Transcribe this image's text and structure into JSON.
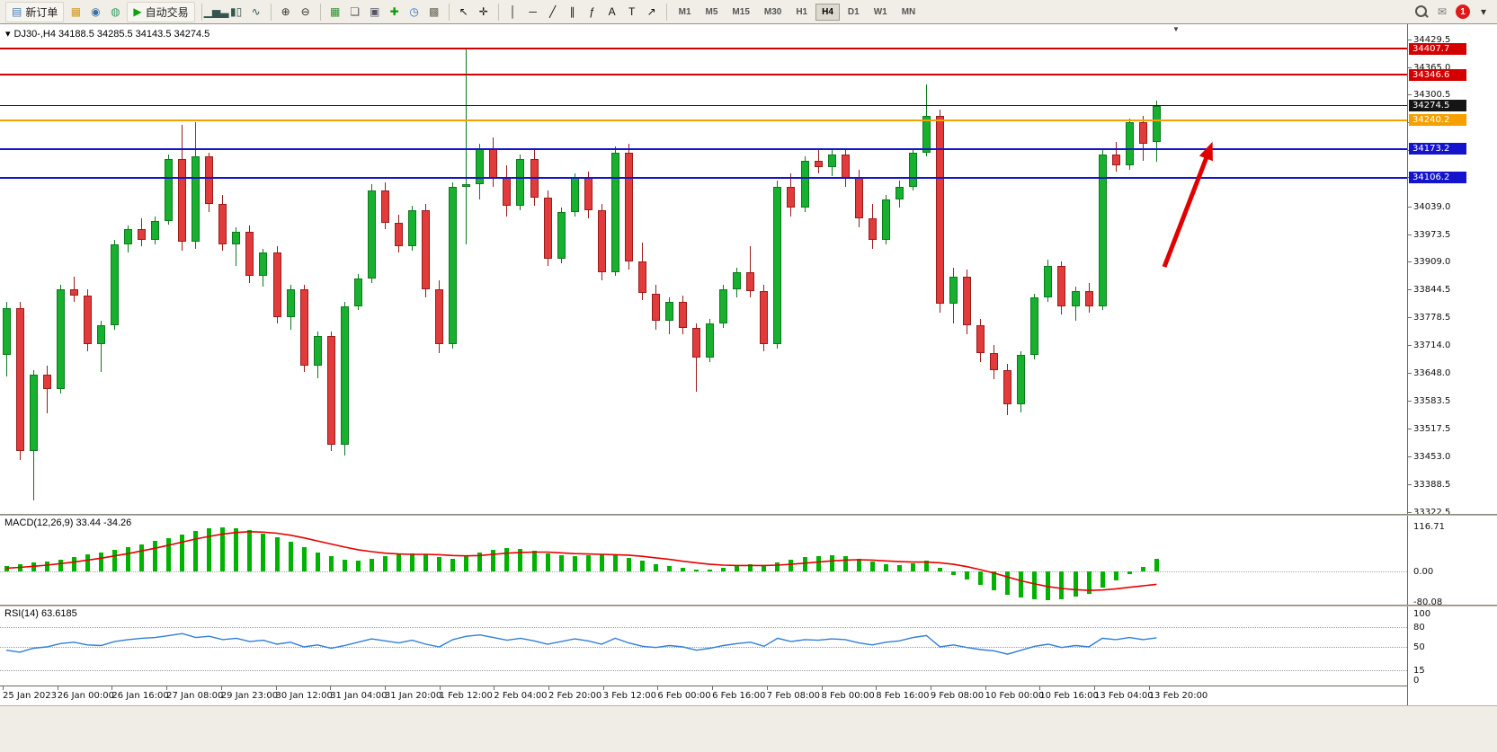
{
  "toolbar": {
    "items": [
      {
        "type": "button",
        "name": "new-order-button",
        "label": "新订单",
        "icon": {
          "name": "new-order-icon",
          "glyph": "▤",
          "color": "#4a7ab5"
        }
      },
      {
        "type": "icon",
        "name": "market-watch-icon",
        "glyph": "▦",
        "color": "#cf9a1d"
      },
      {
        "type": "icon",
        "name": "profile-icon",
        "glyph": "◉",
        "color": "#3a6ea5"
      },
      {
        "type": "icon",
        "name": "community-icon",
        "glyph": "◍",
        "color": "#2f9e63"
      },
      {
        "type": "button",
        "name": "auto-trading-button",
        "label": "自动交易",
        "icon": {
          "name": "autotrade-play-icon",
          "glyph": "▶",
          "color": "#0f9f0f"
        }
      },
      {
        "type": "sep"
      },
      {
        "type": "icon",
        "name": "bar-chart-icon",
        "glyph": "▁▅▃",
        "color": "#33544f"
      },
      {
        "type": "icon",
        "name": "candlestick-chart-icon",
        "glyph": "▮▯",
        "color": "#33544f"
      },
      {
        "type": "icon",
        "name": "line-chart-icon",
        "glyph": "∿",
        "color": "#33544f"
      },
      {
        "type": "sep"
      },
      {
        "type": "icon",
        "name": "zoom-in-icon",
        "glyph": "⊕",
        "color": "#333333"
      },
      {
        "type": "icon",
        "name": "zoom-out-icon",
        "glyph": "⊖",
        "color": "#333333"
      },
      {
        "type": "sep"
      },
      {
        "type": "icon",
        "name": "tile-windows-icon",
        "glyph": "▦",
        "color": "#2f8f2f"
      },
      {
        "type": "icon",
        "name": "cascade-windows-icon",
        "glyph": "❏",
        "color": "#555566"
      },
      {
        "type": "icon",
        "name": "arrange-windows-icon",
        "glyph": "▣",
        "color": "#555566"
      },
      {
        "type": "icon",
        "name": "add-indicator-icon",
        "glyph": "✚",
        "color": "#0a9a0a"
      },
      {
        "type": "icon",
        "name": "period-cycle-icon",
        "glyph": "◷",
        "color": "#2a6fbf"
      },
      {
        "type": "icon",
        "name": "template-icon",
        "glyph": "▩",
        "color": "#6b675b"
      },
      {
        "type": "sep"
      },
      {
        "type": "icon",
        "name": "cursor-icon",
        "glyph": "↖",
        "color": "#111111"
      },
      {
        "type": "icon",
        "name": "crosshair-icon",
        "glyph": "✛",
        "color": "#111111"
      },
      {
        "type": "sep"
      },
      {
        "type": "icon",
        "name": "vertical-line-icon",
        "glyph": "│",
        "color": "#111111"
      },
      {
        "type": "icon",
        "name": "horizontal-line-icon",
        "glyph": "─",
        "color": "#111111"
      },
      {
        "type": "icon",
        "name": "trendline-icon",
        "glyph": "╱",
        "color": "#111111"
      },
      {
        "type": "icon",
        "name": "channel-icon",
        "glyph": "∥",
        "color": "#111111"
      },
      {
        "type": "icon",
        "name": "fibonacci-icon",
        "glyph": "ƒ",
        "color": "#111111"
      },
      {
        "type": "icon",
        "name": "text-icon",
        "glyph": "A",
        "color": "#111111"
      },
      {
        "type": "icon",
        "name": "label-icon",
        "glyph": "T",
        "color": "#111111"
      },
      {
        "type": "icon",
        "name": "shapes-icon",
        "glyph": "↗",
        "color": "#111111"
      },
      {
        "type": "sep"
      }
    ],
    "timeframes": [
      {
        "label": "M1"
      },
      {
        "label": "M5"
      },
      {
        "label": "M15"
      },
      {
        "label": "M30"
      },
      {
        "label": "H1"
      },
      {
        "label": "H4",
        "active": true
      },
      {
        "label": "D1"
      },
      {
        "label": "W1"
      },
      {
        "label": "MN"
      }
    ],
    "right_items": [
      {
        "type": "magnifier",
        "name": "search-icon"
      },
      {
        "type": "icon",
        "name": "mail-icon",
        "glyph": "✉",
        "color": "#777777"
      },
      {
        "type": "badge",
        "name": "notification-badge",
        "value": "1",
        "color": "#e01a1a"
      },
      {
        "type": "icon",
        "name": "toolbar-overflow-icon",
        "glyph": "▾",
        "color": "#333333"
      }
    ],
    "notification_count": "1"
  },
  "icons": {
    "dropdown": "▾",
    "shift_marker": "▼"
  },
  "chart": {
    "title": "DJ30-,H4  34188.5 34285.5 34143.5 34274.5",
    "hlines": [
      {
        "label": "34407.7",
        "price": 34407.7,
        "color": "#d40000",
        "thickness": 2
      },
      {
        "label": "34346.6",
        "price": 34346.6,
        "color": "#d40000",
        "thickness": 2
      },
      {
        "label": "34274.5",
        "price": 34274.5,
        "color": "#151515",
        "thickness": 1
      },
      {
        "label": "34240.2",
        "price": 34240.2,
        "color": "#f5a000",
        "thickness": 2
      },
      {
        "label": "34173.2",
        "price": 34173.2,
        "color": "#1414cc",
        "thickness": 2
      },
      {
        "label": "34106.2",
        "price": 34106.2,
        "color": "#1414cc",
        "thickness": 2
      }
    ],
    "price_ticks": [
      "34429.5",
      "34365.0",
      "34300.5",
      "34236.0",
      "34171.5",
      "34107.0",
      "34039.0",
      "33973.5",
      "33909.0",
      "33844.5",
      "33778.5",
      "33714.0",
      "33648.0",
      "33583.5",
      "33517.5",
      "33453.0",
      "33388.5",
      "33322.5"
    ],
    "time_labels": [
      "25 Jan 2023",
      "26 Jan 00:00",
      "26 Jan 16:00",
      "27 Jan 08:00",
      "29 Jan 23:00",
      "30 Jan 12:00",
      "31 Jan 04:00",
      "31 Jan 20:00",
      "1 Feb 12:00",
      "2 Feb 04:00",
      "2 Feb 20:00",
      "3 Feb 12:00",
      "6 Feb 00:00",
      "6 Feb 16:00",
      "7 Feb 08:00",
      "8 Feb 00:00",
      "8 Feb 16:00",
      "9 Feb 08:00",
      "10 Feb 00:00",
      "10 Feb 16:00",
      "13 Feb 04:00",
      "13 Feb 20:00"
    ]
  },
  "indicators": {
    "macd": {
      "label": "MACD(12,26,9) 33.44 -34.26",
      "scale": [
        "116.71",
        "0.00",
        "-80.08"
      ]
    },
    "rsi": {
      "label": "RSI(14) 63.6185",
      "scale": [
        "100",
        "80",
        "50",
        "15",
        "0"
      ],
      "levels": [
        80,
        50,
        15
      ]
    }
  },
  "chart_data": {
    "type": "candlestick",
    "symbol": "DJ30-",
    "timeframe": "H4",
    "current_bar": {
      "open": 34188.5,
      "high": 34285.5,
      "low": 34143.5,
      "close": 34274.5
    },
    "price_range": [
      33322.5,
      34429.5
    ],
    "ohlc": [
      [
        33690,
        33815,
        33640,
        33800
      ],
      [
        33800,
        33815,
        33445,
        33465
      ],
      [
        33465,
        33655,
        33350,
        33645
      ],
      [
        33645,
        33665,
        33555,
        33610
      ],
      [
        33610,
        33855,
        33600,
        33845
      ],
      [
        33845,
        33875,
        33815,
        33830
      ],
      [
        33830,
        33845,
        33700,
        33715
      ],
      [
        33715,
        33770,
        33650,
        33760
      ],
      [
        33760,
        33960,
        33750,
        33950
      ],
      [
        33950,
        33995,
        33930,
        33985
      ],
      [
        33985,
        34010,
        33945,
        33960
      ],
      [
        33960,
        34015,
        33950,
        34005
      ],
      [
        34005,
        34160,
        33995,
        34150
      ],
      [
        34150,
        34230,
        33935,
        33955
      ],
      [
        33955,
        34235,
        33940,
        34155
      ],
      [
        34155,
        34165,
        34025,
        34045
      ],
      [
        34045,
        34065,
        33935,
        33950
      ],
      [
        33950,
        33990,
        33900,
        33980
      ],
      [
        33980,
        33995,
        33860,
        33875
      ],
      [
        33875,
        33940,
        33850,
        33930
      ],
      [
        33930,
        33945,
        33765,
        33780
      ],
      [
        33780,
        33855,
        33750,
        33845
      ],
      [
        33845,
        33855,
        33650,
        33665
      ],
      [
        33665,
        33745,
        33635,
        33735
      ],
      [
        33735,
        33745,
        33465,
        33480
      ],
      [
        33480,
        33815,
        33455,
        33805
      ],
      [
        33805,
        33880,
        33795,
        33870
      ],
      [
        33870,
        34090,
        33860,
        34075
      ],
      [
        34075,
        34095,
        33985,
        34000
      ],
      [
        34000,
        34020,
        33930,
        33945
      ],
      [
        33945,
        34040,
        33935,
        34030
      ],
      [
        34030,
        34045,
        33825,
        33845
      ],
      [
        33845,
        33865,
        33695,
        33715
      ],
      [
        33715,
        34095,
        33705,
        34085
      ],
      [
        34085,
        34408,
        33950,
        34090
      ],
      [
        34090,
        34185,
        34055,
        34175
      ],
      [
        34175,
        34200,
        34085,
        34105
      ],
      [
        34105,
        34135,
        34015,
        34040
      ],
      [
        34040,
        34160,
        34030,
        34150
      ],
      [
        34150,
        34170,
        34040,
        34060
      ],
      [
        34060,
        34075,
        33900,
        33915
      ],
      [
        33915,
        34035,
        33905,
        34025
      ],
      [
        34025,
        34115,
        34015,
        34105
      ],
      [
        34105,
        34120,
        34010,
        34030
      ],
      [
        34030,
        34045,
        33865,
        33885
      ],
      [
        33885,
        34180,
        33875,
        34165
      ],
      [
        34165,
        34185,
        33890,
        33910
      ],
      [
        33910,
        33955,
        33820,
        33835
      ],
      [
        33835,
        33855,
        33750,
        33770
      ],
      [
        33770,
        33825,
        33740,
        33815
      ],
      [
        33815,
        33830,
        33740,
        33755
      ],
      [
        33755,
        33765,
        33605,
        33685
      ],
      [
        33685,
        33775,
        33675,
        33765
      ],
      [
        33765,
        33855,
        33755,
        33845
      ],
      [
        33845,
        33895,
        33825,
        33885
      ],
      [
        33885,
        33945,
        33825,
        33840
      ],
      [
        33840,
        33855,
        33700,
        33715
      ],
      [
        33715,
        34100,
        33705,
        34085
      ],
      [
        34085,
        34115,
        34015,
        34035
      ],
      [
        34035,
        34155,
        34025,
        34145
      ],
      [
        34145,
        34175,
        34115,
        34130
      ],
      [
        34130,
        34170,
        34110,
        34160
      ],
      [
        34160,
        34175,
        34085,
        34105
      ],
      [
        34105,
        34125,
        33990,
        34010
      ],
      [
        34010,
        34045,
        33940,
        33960
      ],
      [
        33960,
        34065,
        33950,
        34055
      ],
      [
        34055,
        34100,
        34035,
        34085
      ],
      [
        34085,
        34175,
        34075,
        34165
      ],
      [
        34165,
        34325,
        34155,
        34250
      ],
      [
        34250,
        34265,
        33790,
        33810
      ],
      [
        33810,
        33895,
        33765,
        33875
      ],
      [
        33875,
        33890,
        33740,
        33760
      ],
      [
        33760,
        33775,
        33675,
        33695
      ],
      [
        33695,
        33715,
        33635,
        33655
      ],
      [
        33655,
        33670,
        33550,
        33575
      ],
      [
        33575,
        33700,
        33555,
        33690
      ],
      [
        33690,
        33835,
        33680,
        33825
      ],
      [
        33825,
        33915,
        33815,
        33900
      ],
      [
        33900,
        33910,
        33785,
        33805
      ],
      [
        33805,
        33850,
        33770,
        33840
      ],
      [
        33840,
        33860,
        33790,
        33805
      ],
      [
        33805,
        34170,
        33795,
        34160
      ],
      [
        34160,
        34190,
        34120,
        34135
      ],
      [
        34135,
        34245,
        34125,
        34235
      ],
      [
        34235,
        34250,
        34145,
        34185
      ],
      [
        34188.5,
        34285.5,
        34143.5,
        34274.5
      ]
    ],
    "macd": {
      "histogram": [
        14,
        18,
        22,
        26,
        31,
        37,
        43,
        49,
        56,
        63,
        71,
        79,
        87,
        96,
        105,
        111,
        114,
        112,
        107,
        99,
        89,
        77,
        63,
        50,
        39,
        31,
        28,
        33,
        39,
        44,
        46,
        44,
        38,
        33,
        40,
        50,
        57,
        60,
        58,
        53,
        47,
        42,
        39,
        41,
        43,
        41,
        35,
        27,
        19,
        13,
        8,
        4,
        5,
        9,
        15,
        19,
        15,
        22,
        30,
        36,
        40,
        42,
        39,
        33,
        25,
        19,
        17,
        21,
        27,
        10,
        -9,
        -22,
        -36,
        -49,
        -61,
        -69,
        -73,
        -76,
        -73,
        -67,
        -58,
        -43,
        -24,
        -7,
        12,
        33.44
      ],
      "signal": [
        8,
        10,
        13,
        16,
        20,
        24,
        29,
        34,
        40,
        46,
        53,
        60,
        68,
        76,
        84,
        91,
        97,
        101,
        103,
        102,
        99,
        94,
        87,
        79,
        71,
        63,
        56,
        51,
        47,
        45,
        44,
        44,
        43,
        41,
        40,
        41,
        44,
        47,
        49,
        50,
        50,
        48,
        46,
        45,
        44,
        43,
        42,
        39,
        35,
        31,
        26,
        22,
        18,
        16,
        15,
        15,
        15,
        16,
        18,
        21,
        24,
        27,
        29,
        30,
        29,
        27,
        25,
        24,
        24,
        22,
        18,
        12,
        4,
        -5,
        -15,
        -25,
        -33,
        -40,
        -45,
        -48,
        -50,
        -49,
        -46,
        -42,
        -38,
        -34.26
      ],
      "range": [
        -80.08,
        116.71
      ],
      "current_macd": 33.44,
      "current_signal": -34.26
    },
    "rsi": {
      "values": [
        45,
        42,
        48,
        50,
        55,
        57,
        53,
        52,
        58,
        61,
        63,
        64,
        67,
        70,
        64,
        66,
        61,
        63,
        58,
        60,
        54,
        57,
        50,
        53,
        48,
        52,
        57,
        62,
        59,
        56,
        60,
        54,
        50,
        61,
        66,
        68,
        64,
        60,
        63,
        59,
        54,
        58,
        62,
        59,
        54,
        63,
        56,
        51,
        49,
        52,
        50,
        45,
        48,
        52,
        55,
        57,
        51,
        63,
        58,
        61,
        60,
        62,
        61,
        56,
        53,
        57,
        59,
        64,
        67,
        50,
        53,
        49,
        46,
        44,
        39,
        45,
        51,
        54,
        49,
        52,
        50,
        63,
        61,
        64,
        61,
        63.6185
      ],
      "range": [
        0,
        100
      ],
      "current": 63.6185
    },
    "annotations": [
      {
        "type": "arrow",
        "color": "#e10000",
        "direction": "up",
        "note": "red up-trend arrow drawn on right side of chart"
      }
    ]
  }
}
